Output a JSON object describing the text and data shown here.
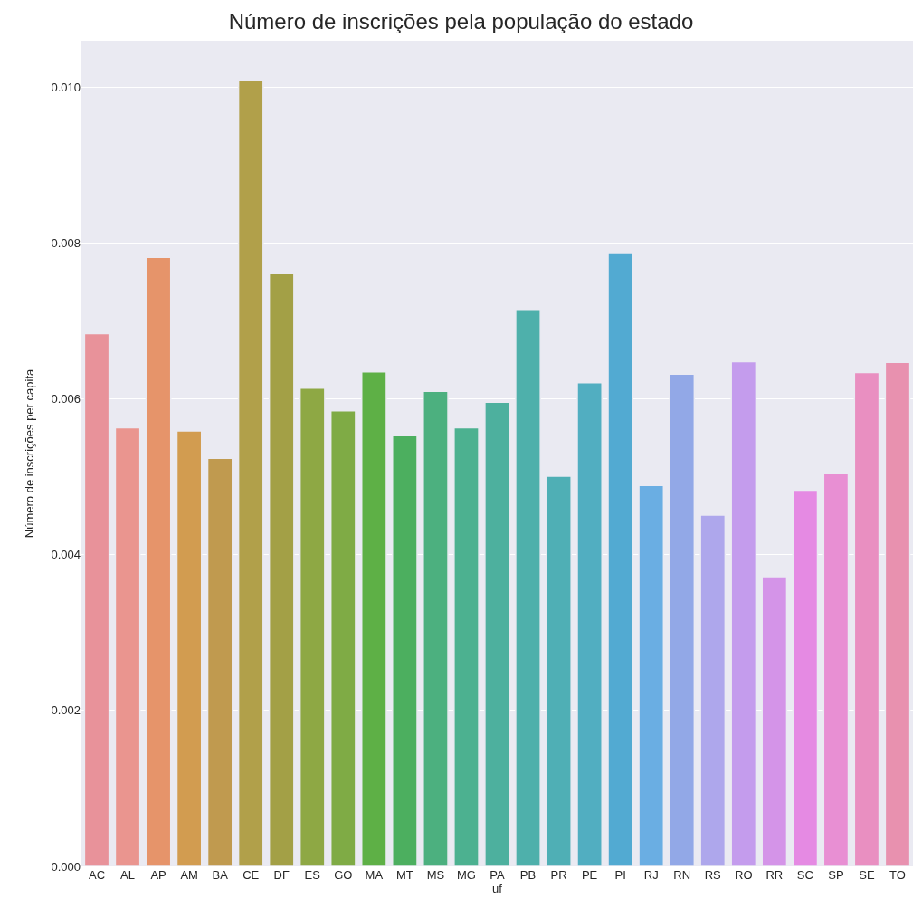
{
  "chart_data": {
    "type": "bar",
    "title": "Número de inscrições pela população do estado",
    "xlabel": "uf",
    "ylabel": "Número de inscrições per capita",
    "categories": [
      "AC",
      "AL",
      "AP",
      "AM",
      "BA",
      "CE",
      "DF",
      "ES",
      "GO",
      "MA",
      "MT",
      "MS",
      "MG",
      "PA",
      "PB",
      "PR",
      "PE",
      "PI",
      "RJ",
      "RN",
      "RS",
      "RO",
      "RR",
      "SC",
      "SP",
      "SE",
      "TO"
    ],
    "values": [
      0.00684,
      0.00563,
      0.00782,
      0.00559,
      0.00524,
      0.01009,
      0.00761,
      0.00614,
      0.00585,
      0.00635,
      0.00553,
      0.0061,
      0.00563,
      0.00596,
      0.00715,
      0.00501,
      0.00621,
      0.00787,
      0.00489,
      0.00632,
      0.00451,
      0.00648,
      0.00372,
      0.00483,
      0.00504,
      0.00634,
      0.00647
    ],
    "colors": [
      "#e8929a",
      "#ea958f",
      "#e6946a",
      "#d29c50",
      "#c09a4f",
      "#b1a04a",
      "#a3a046",
      "#8ea844",
      "#7fab45",
      "#5eb046",
      "#4caf5f",
      "#4cb07f",
      "#4cb190",
      "#4db09e",
      "#4eb0ab",
      "#4fafb5",
      "#51aec1",
      "#52aad2",
      "#6aaee3",
      "#92a8e7",
      "#aea7ec",
      "#c49ced",
      "#d494e8",
      "#e58ae3",
      "#e88fd3",
      "#e98fc1",
      "#e891af"
    ],
    "ylim": [
      0,
      0.0106
    ],
    "yticks": [
      {
        "value": 0,
        "label": "0.000"
      },
      {
        "value": 0.002,
        "label": "0.002"
      },
      {
        "value": 0.004,
        "label": "0.004"
      },
      {
        "value": 0.006,
        "label": "0.006"
      },
      {
        "value": 0.008,
        "label": "0.008"
      },
      {
        "value": 0.01,
        "label": "0.010"
      }
    ],
    "grid": "y"
  }
}
